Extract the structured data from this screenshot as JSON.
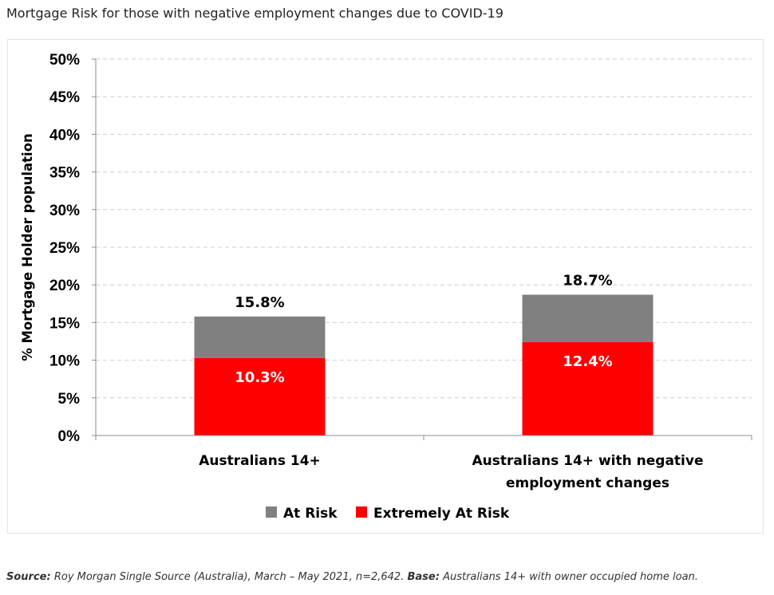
{
  "page_title": "Mortgage Risk for those with negative employment changes due to COVID-19",
  "source": {
    "source_label": "Source:",
    "source_text": "Roy Morgan Single Source (Australia), March – May 2021, n=2,642.",
    "base_label": "Base:",
    "base_text": "Australians 14+ with owner occupied home loan."
  },
  "colors": {
    "at_risk": "#808080",
    "extremely_at_risk": "#ff0000",
    "grid": "#cfcfcf",
    "axis": "#8c8c8c"
  },
  "chart_data": {
    "type": "bar",
    "stacked": true,
    "title": "Mortgage Risk for those with negative employment changes due to COVID-19",
    "xlabel": "",
    "ylabel": "% Mortgage Holder population",
    "ylim": [
      0,
      50
    ],
    "y_ticks": [
      "0%",
      "5%",
      "10%",
      "15%",
      "20%",
      "25%",
      "30%",
      "35%",
      "40%",
      "45%",
      "50%"
    ],
    "grid": true,
    "legend_position": "bottom",
    "categories": [
      [
        "Australians 14+"
      ],
      [
        "Australians 14+ with negative",
        "employment changes"
      ]
    ],
    "series": [
      {
        "name": "Extremely At Risk",
        "values": [
          10.3,
          12.4
        ],
        "labels": [
          "10.3%",
          "12.4%"
        ]
      },
      {
        "name": "At Risk",
        "values": [
          5.5,
          6.3
        ]
      }
    ],
    "totals": [
      15.8,
      18.7
    ],
    "total_labels": [
      "15.8%",
      "18.7%"
    ],
    "legend": [
      "At Risk",
      "Extremely At Risk"
    ]
  }
}
